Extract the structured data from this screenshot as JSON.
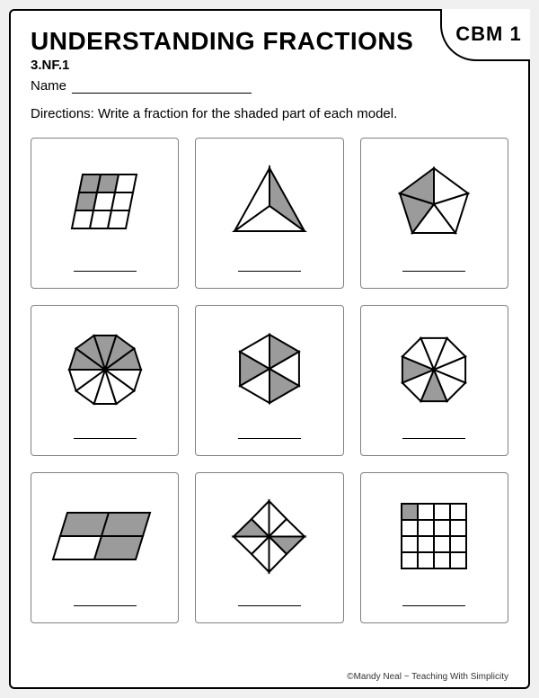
{
  "title": "UNDERSTANDING FRACTIONS",
  "badge": "CBM 1",
  "standard": "3.NF.1",
  "name_label": "Name",
  "directions": "Directions:  Write a fraction for the shaded part of each model.",
  "footer": "©Mandy Neal ~ Teaching With Simplicity",
  "colors": {
    "shade": "#9b9b9b",
    "stroke": "#000000",
    "border": "#808080",
    "bg": "#ffffff"
  },
  "cells": [
    {
      "type": "parallelogram-grid",
      "rows": 3,
      "cols": 3,
      "shaded": [
        0,
        1,
        3
      ],
      "total": 9
    },
    {
      "type": "triangle-3",
      "shaded": [
        1
      ],
      "total": 3
    },
    {
      "type": "pentagon-5",
      "shaded": [
        3,
        4
      ],
      "total": 5
    },
    {
      "type": "decagon-10",
      "shaded": [
        0,
        1,
        2,
        3,
        4
      ],
      "total": 10
    },
    {
      "type": "hexagon-6",
      "shaded": [
        0,
        2,
        4
      ],
      "total": 6
    },
    {
      "type": "octagon-8",
      "shaded": [
        3,
        5
      ],
      "total": 8
    },
    {
      "type": "parallelogram-4",
      "shaded": [
        0,
        1,
        3
      ],
      "total": 4
    },
    {
      "type": "diamond-8",
      "shaded": [
        2,
        6
      ],
      "total": 8
    },
    {
      "type": "square-grid-16",
      "shaded": [
        0
      ],
      "total": 16
    }
  ]
}
